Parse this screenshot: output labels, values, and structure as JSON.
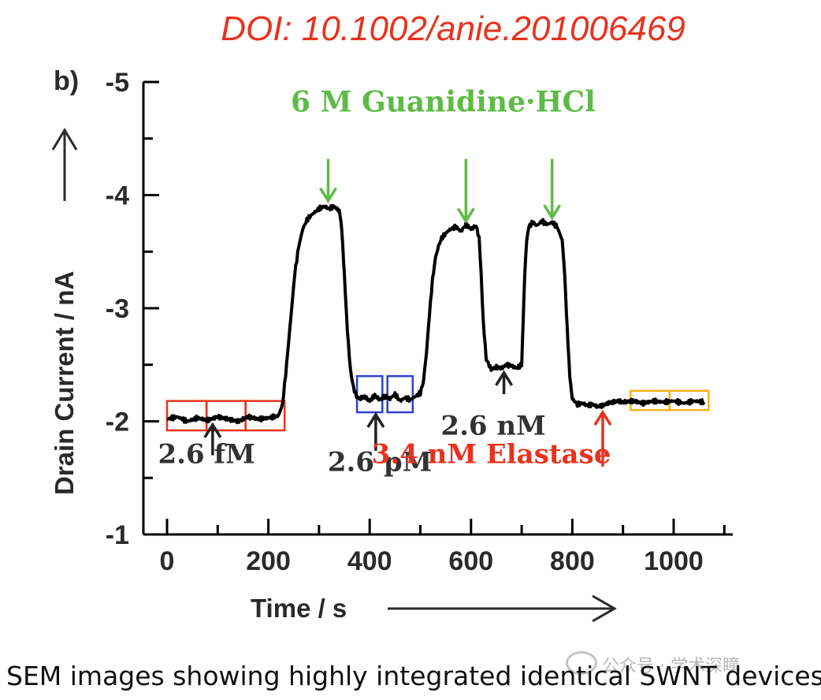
{
  "doi": "DOI: 10.1002/anie.201006469",
  "caption": "SEM images showing highly integrated identical SWNT devices.",
  "watermark": "公众号 · 学术深瞳",
  "chart_data": {
    "type": "line",
    "panel_label": "b)",
    "title": "",
    "xlabel": "Time / s",
    "ylabel": "Drain Current / nA",
    "xlim": [
      -50,
      1110
    ],
    "ylim": [
      -5,
      -1
    ],
    "y_inverted": true,
    "xticks": [
      0,
      200,
      400,
      600,
      800,
      1000
    ],
    "yticks": [
      -5,
      -4,
      -3,
      -2,
      -1
    ],
    "series_color": "#000000",
    "series": [
      {
        "x": [
          0,
          20,
          40,
          60,
          80,
          100,
          120,
          140,
          160,
          180,
          200,
          220,
          228,
          236,
          244,
          252,
          260,
          268,
          276,
          284,
          292,
          300,
          310,
          320,
          330,
          340,
          345,
          350,
          356,
          362,
          368,
          374,
          380,
          390,
          400,
          410,
          420,
          430,
          440,
          450,
          460,
          470,
          480,
          490,
          500,
          506,
          512,
          518,
          524,
          530,
          536,
          542,
          548,
          554,
          560,
          570,
          580,
          590,
          600,
          610,
          616,
          620,
          624,
          630,
          640,
          650,
          660,
          670,
          680,
          690,
          700,
          703,
          706,
          710,
          714,
          718,
          722,
          730,
          740,
          750,
          760,
          770,
          780,
          785,
          790,
          795,
          800,
          810,
          820,
          830,
          840,
          850,
          860,
          870,
          880,
          890,
          900,
          920,
          940,
          960,
          980,
          1000,
          1020,
          1040,
          1060
        ],
        "y": [
          -2.02,
          -2.04,
          -2.0,
          -2.03,
          -2.01,
          -2.04,
          -2.02,
          -2.0,
          -2.04,
          -2.02,
          -2.03,
          -2.05,
          -2.15,
          -2.5,
          -2.9,
          -3.3,
          -3.55,
          -3.7,
          -3.78,
          -3.82,
          -3.85,
          -3.88,
          -3.9,
          -3.88,
          -3.9,
          -3.86,
          -3.7,
          -3.3,
          -2.8,
          -2.45,
          -2.3,
          -2.22,
          -2.2,
          -2.22,
          -2.18,
          -2.23,
          -2.19,
          -2.22,
          -2.2,
          -2.24,
          -2.18,
          -2.21,
          -2.19,
          -2.22,
          -2.25,
          -2.35,
          -2.6,
          -2.95,
          -3.25,
          -3.45,
          -3.55,
          -3.62,
          -3.65,
          -3.68,
          -3.7,
          -3.72,
          -3.68,
          -3.74,
          -3.7,
          -3.73,
          -3.62,
          -3.3,
          -2.9,
          -2.55,
          -2.46,
          -2.48,
          -2.47,
          -2.5,
          -2.49,
          -2.47,
          -2.5,
          -2.9,
          -3.3,
          -3.6,
          -3.72,
          -3.74,
          -3.76,
          -3.73,
          -3.77,
          -3.74,
          -3.76,
          -3.72,
          -3.6,
          -3.3,
          -2.8,
          -2.4,
          -2.2,
          -2.15,
          -2.16,
          -2.14,
          -2.15,
          -2.13,
          -2.14,
          -2.16,
          -2.17,
          -2.18,
          -2.17,
          -2.18,
          -2.16,
          -2.18,
          -2.17,
          -2.18,
          -2.16,
          -2.18,
          -2.17
        ]
      }
    ],
    "annotations": [
      {
        "text": "6 M Guanidine·HCl",
        "color": "#5dbb46",
        "x_text": 545,
        "y_text": -4.74,
        "size": 36
      },
      {
        "text": "2.6 fM",
        "color": "#333333",
        "x_text": 78,
        "y_text": -1.63,
        "size": 34
      },
      {
        "text": "2.6 pM",
        "color": "#333333",
        "x_text": 420,
        "y_text": -1.56,
        "size": 34
      },
      {
        "text": "2.6 nM",
        "color": "#333333",
        "x_text": 644,
        "y_text": -1.88,
        "size": 34
      },
      {
        "text": "3.4 nM Elastase",
        "color": "#e8321e",
        "x_text": 640,
        "y_text": -1.63,
        "size": 34
      }
    ],
    "arrows": [
      {
        "color": "#5dbb46",
        "x": 318,
        "y_from": -4.32,
        "y_to": -3.95
      },
      {
        "color": "#5dbb46",
        "x": 590,
        "y_from": -4.32,
        "y_to": -3.77
      },
      {
        "color": "#5dbb46",
        "x": 760,
        "y_from": -4.32,
        "y_to": -3.8
      },
      {
        "color": "#222222",
        "x": 90,
        "y_from": -1.7,
        "y_to": -1.97
      },
      {
        "color": "#222222",
        "x": 412,
        "y_from": -1.74,
        "y_to": -2.06
      },
      {
        "color": "#222222",
        "x": 665,
        "y_from": -2.24,
        "y_to": -2.43
      },
      {
        "color": "#e8321e",
        "x": 860,
        "y_from": -1.6,
        "y_to": -2.08
      }
    ],
    "boxes": [
      {
        "color": "#e8321e",
        "x0": 0,
        "x1": 78,
        "y0": -1.92,
        "y1": -2.18
      },
      {
        "color": "#e8321e",
        "x0": 78,
        "x1": 155,
        "y0": -1.92,
        "y1": -2.18
      },
      {
        "color": "#e8321e",
        "x0": 155,
        "x1": 232,
        "y0": -1.92,
        "y1": -2.18
      },
      {
        "color": "#2f3fd0",
        "x0": 375,
        "x1": 425,
        "y0": -2.08,
        "y1": -2.4
      },
      {
        "color": "#2f3fd0",
        "x0": 435,
        "x1": 485,
        "y0": -2.08,
        "y1": -2.4
      },
      {
        "color": "#f0b41c",
        "x0": 915,
        "x1": 992,
        "y0": -2.1,
        "y1": -2.27
      },
      {
        "color": "#f0b41c",
        "x0": 992,
        "x1": 1069,
        "y0": -2.1,
        "y1": -2.27
      }
    ]
  }
}
